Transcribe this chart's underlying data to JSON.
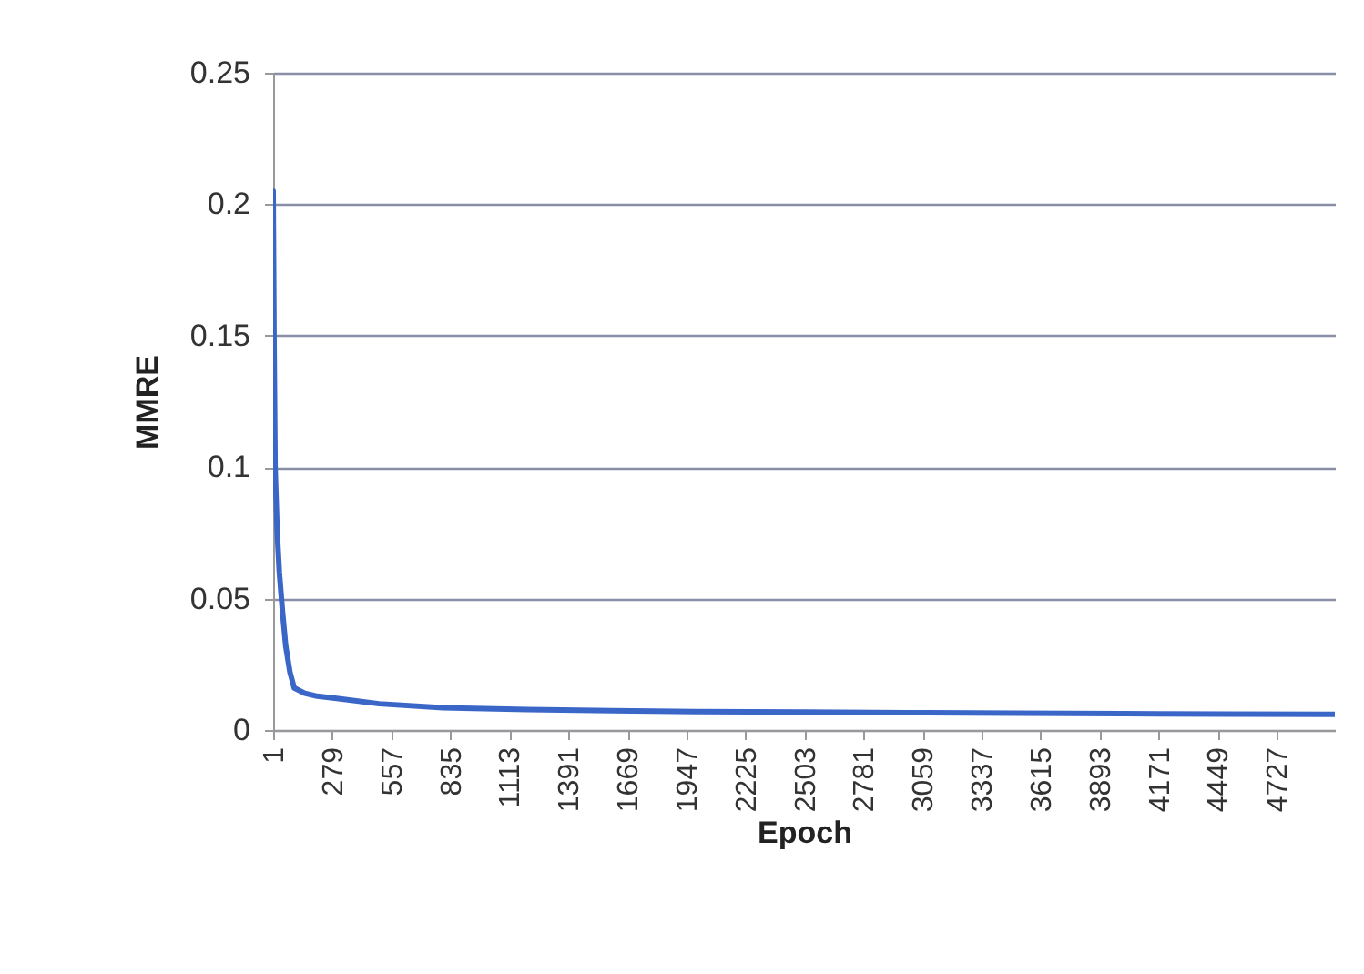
{
  "chart_data": {
    "type": "line",
    "xlabel": "Epoch",
    "ylabel": "MMRE",
    "x": [
      1,
      5,
      10,
      20,
      30,
      45,
      60,
      80,
      100,
      150,
      200,
      300,
      500,
      800,
      1200,
      1600,
      2000,
      2500,
      3000,
      3500,
      4000,
      4500,
      5000
    ],
    "series": [
      {
        "color": "#3a66c8",
        "values": [
          0.205,
          0.15,
          0.1,
          0.075,
          0.06,
          0.045,
          0.032,
          0.022,
          0.016,
          0.014,
          0.013,
          0.012,
          0.01,
          0.0085,
          0.0078,
          0.0074,
          0.007,
          0.0068,
          0.0066,
          0.0064,
          0.0062,
          0.0061,
          0.006
        ]
      }
    ],
    "xlim": [
      1,
      5000
    ],
    "xticks": [
      1,
      279,
      557,
      835,
      1113,
      1391,
      1669,
      1947,
      2225,
      2503,
      2781,
      3059,
      3337,
      3615,
      3893,
      4171,
      4449,
      4727
    ],
    "ylim": [
      0,
      0.25
    ],
    "yticks": [
      0,
      0.05,
      0.1,
      0.15,
      0.2,
      0.25
    ],
    "grid": "y",
    "marker": "none",
    "line_style": "solid"
  }
}
